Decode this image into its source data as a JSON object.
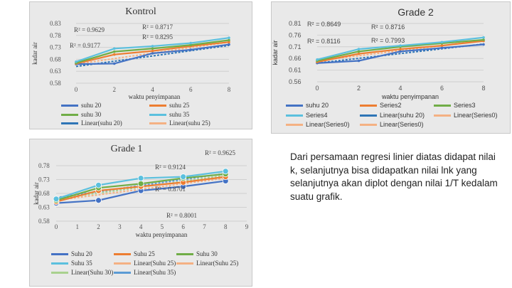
{
  "chart_data": [
    {
      "type": "line",
      "title": "Kontrol",
      "xlabel": "waktu penyimpanan",
      "ylabel": "kadar air",
      "xlim": [
        0,
        8
      ],
      "ylim": [
        0.58,
        0.83
      ],
      "xticks": [
        "0",
        "2",
        "4",
        "6",
        "8"
      ],
      "yticks": [
        "0.83",
        "0.78",
        "0.73",
        "0.68",
        "0.63",
        "0.58"
      ],
      "x": [
        0,
        2,
        4,
        6,
        8
      ],
      "series": [
        {
          "name": "suhu 20",
          "color": "#4472c4",
          "values": [
            0.66,
            0.662,
            0.705,
            0.72,
            0.742
          ]
        },
        {
          "name": "suhu 25",
          "color": "#ed7d31",
          "values": [
            0.662,
            0.7,
            0.715,
            0.735,
            0.752
          ]
        },
        {
          "name": "suhu 30",
          "color": "#70ad47",
          "values": [
            0.665,
            0.712,
            0.725,
            0.74,
            0.76
          ]
        },
        {
          "name": "suhu 35",
          "color": "#5bc0de",
          "values": [
            0.67,
            0.725,
            0.735,
            0.748,
            0.77
          ]
        }
      ],
      "trendlines": [
        {
          "name": "Linear(suhu 20)",
          "color": "#2e75b6",
          "from": [
            0,
            0.65
          ],
          "to": [
            8,
            0.738
          ]
        },
        {
          "name": "Linear(suhu 25)",
          "color": "#f4b183",
          "from": [
            0,
            0.66
          ],
          "to": [
            8,
            0.752
          ]
        }
      ],
      "annotations": [
        "R² = 0.9629",
        "R² = 0.8717",
        "R² = 0.8295",
        "R² = 0.9177"
      ],
      "legend": [
        "suhu 20",
        "suhu 25",
        "suhu 30",
        "suhu 35",
        "Linear(suhu 20)",
        "Linear(suhu 25)"
      ]
    },
    {
      "type": "line",
      "title": "Grade 2",
      "xlabel": "waktu penyimpanan",
      "ylabel": "kadar air",
      "xlim": [
        0,
        8
      ],
      "ylim": [
        0.56,
        0.81
      ],
      "xticks": [
        "0",
        "2",
        "4",
        "6",
        "8"
      ],
      "yticks": [
        "0.81",
        "0.76",
        "0.71",
        "0.66",
        "0.61",
        "0.56"
      ],
      "x": [
        0,
        2,
        4,
        6,
        8
      ],
      "series": [
        {
          "name": "suhu 20",
          "color": "#4472c4",
          "values": [
            0.64,
            0.65,
            0.69,
            0.705,
            0.72
          ]
        },
        {
          "name": "Series2",
          "color": "#ed7d31",
          "values": [
            0.645,
            0.68,
            0.7,
            0.715,
            0.735
          ]
        },
        {
          "name": "Series3",
          "color": "#70ad47",
          "values": [
            0.65,
            0.69,
            0.71,
            0.725,
            0.74
          ]
        },
        {
          "name": "Series4",
          "color": "#5bc0de",
          "values": [
            0.655,
            0.7,
            0.715,
            0.73,
            0.75
          ]
        }
      ],
      "trendlines": [
        {
          "name": "Linear(suhu 20)",
          "color": "#2e75b6",
          "from": [
            0,
            0.64
          ],
          "to": [
            8,
            0.722
          ]
        },
        {
          "name": "Linear(Series0)",
          "color": "#f4b183",
          "from": [
            0,
            0.65
          ],
          "to": [
            8,
            0.737
          ]
        }
      ],
      "annotations": [
        "R² = 0.8649",
        "R² = 0.8716",
        "R² = 0.8116",
        "R² = 0.7993"
      ],
      "legend": [
        "suhu 20",
        "Series2",
        "Series3",
        "Series4",
        "Linear(suhu 20)",
        "Linear(Series0)",
        "Linear(Series0)",
        "Linear(Series0)"
      ]
    },
    {
      "type": "line",
      "title": "Grade 1",
      "xlabel": "waktu penyimpanan",
      "ylabel": "kadar air",
      "xlim": [
        0,
        9
      ],
      "ylim": [
        0.58,
        0.78
      ],
      "xticks": [
        "0",
        "1",
        "2",
        "3",
        "4",
        "5",
        "6",
        "7",
        "8",
        "9"
      ],
      "yticks": [
        "0.78",
        "0.73",
        "0.68",
        "0.63",
        "0.58"
      ],
      "series": [
        {
          "name": "Suhu 20",
          "color": "#4472c4",
          "x": [
            0,
            2,
            4,
            6,
            8
          ],
          "values": [
            0.645,
            0.655,
            0.69,
            0.705,
            0.725
          ]
        },
        {
          "name": "Suhu 25",
          "color": "#ed7d31",
          "x": [
            0,
            2,
            4,
            6,
            8
          ],
          "values": [
            0.65,
            0.69,
            0.705,
            0.72,
            0.74
          ]
        },
        {
          "name": "Suhu 30",
          "color": "#70ad47",
          "x": [
            0,
            2,
            4,
            6,
            8
          ],
          "values": [
            0.655,
            0.7,
            0.715,
            0.735,
            0.75
          ]
        },
        {
          "name": "Suhu 35",
          "color": "#5bc0de",
          "x": [
            0,
            2,
            4,
            6,
            8
          ],
          "values": [
            0.66,
            0.71,
            0.735,
            0.74,
            0.76
          ]
        }
      ],
      "trendlines": [
        {
          "name": "Linear(Suhu 25)",
          "color": "#f4b183",
          "from": [
            0,
            0.655
          ],
          "to": [
            8,
            0.735
          ]
        },
        {
          "name": "Linear(Suhu 30)",
          "color": "#a9d18e",
          "from": [
            0,
            0.66
          ],
          "to": [
            8,
            0.745
          ]
        },
        {
          "name": "Linear(Suhu 35)",
          "color": "#5b9bd5",
          "from": [
            0,
            0.665
          ],
          "to": [
            8,
            0.752
          ]
        }
      ],
      "annotations": [
        "R² = 0.9625",
        "R² = 0.9124",
        "R² = 0.8701",
        "R² = 0.8001"
      ],
      "legend": [
        "Suhu 20",
        "Suhu 25",
        "Suhu 30",
        "Suhu 35",
        "Linear(Suhu 25)",
        "Linear(Suhu 25)",
        "Linear(Suhu 30)",
        "Linear(Suhu 35)"
      ]
    }
  ],
  "description": "Dari persamaan regresi linier diatas didapat nilai k, selanjutnya bisa didapatkan nilai lnk yang selanjutnya akan diplot dengan nilai 1/T kedalam suatu grafik."
}
